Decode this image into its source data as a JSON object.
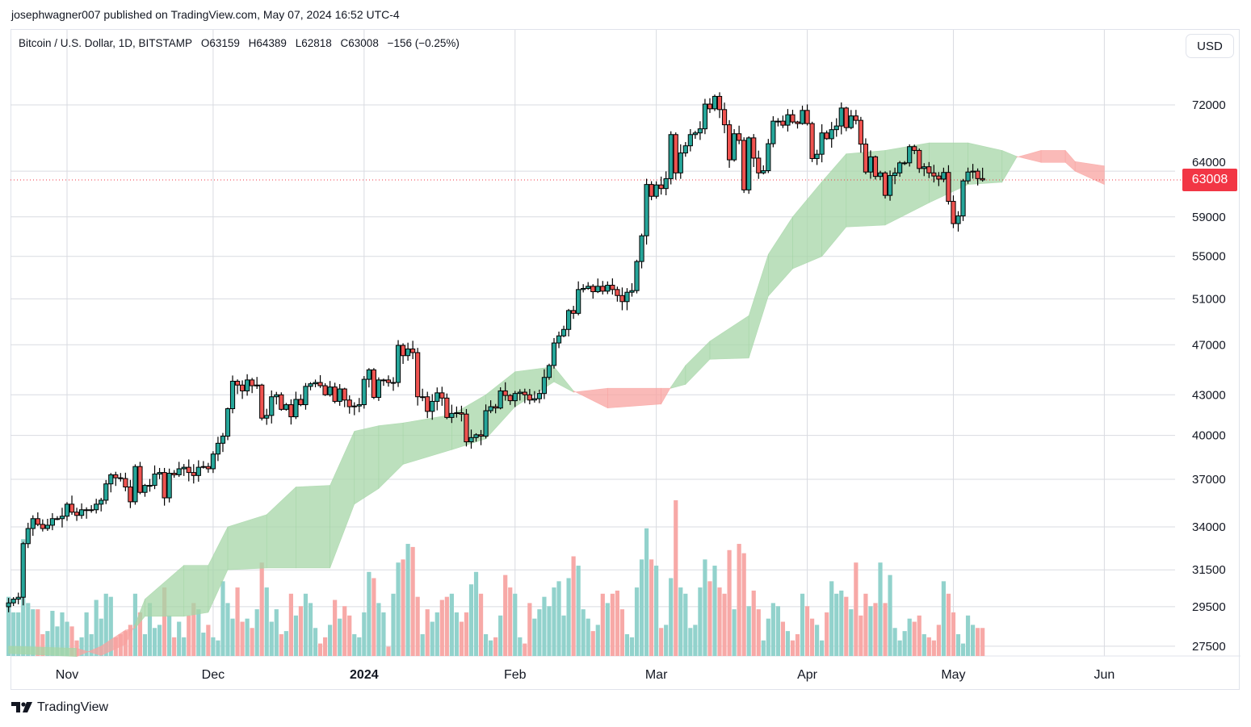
{
  "publisher": "josephwagner007 published on TradingView.com, May 07, 2024 16:52 UTC-4",
  "legend": {
    "symbol": "Bitcoin / U.S. Dollar, 1D, BITSTAMP",
    "open": "O63159",
    "high": "H64389",
    "low": "L62818",
    "close": "C63008",
    "change": "−156 (−0.25%)"
  },
  "currency_button": "USD",
  "last_price_label": "63008",
  "footer_brand": "TradingView",
  "colors": {
    "up": "#26a69a",
    "down": "#ef5350",
    "cloud_bull": "#a5d6a7",
    "cloud_bear": "#f8a3a0",
    "last_price": "#f23645",
    "grid": "#d9dbe1"
  },
  "chart_data": {
    "type": "candlestick",
    "scale": "log",
    "grid": true,
    "indicators": [
      "volume",
      "ichimoku cloud"
    ],
    "y_ticks": [
      "72000",
      "64000",
      "59000",
      "55000",
      "51000",
      "47000",
      "43000",
      "40000",
      "37000",
      "34000",
      "31500",
      "29500",
      "27500"
    ],
    "x_ticks": [
      {
        "label": "Nov",
        "date": "2023-11-01",
        "bold": false
      },
      {
        "label": "Dec",
        "date": "2023-12-01",
        "bold": false
      },
      {
        "label": "2024",
        "date": "2024-01-01",
        "bold": true
      },
      {
        "label": "Feb",
        "date": "2024-02-01",
        "bold": false
      },
      {
        "label": "Mar",
        "date": "2024-03-01",
        "bold": false
      },
      {
        "label": "Apr",
        "date": "2024-04-01",
        "bold": false
      },
      {
        "label": "May",
        "date": "2024-05-01",
        "bold": false
      },
      {
        "label": "Jun",
        "date": "2024-06-01",
        "bold": false
      }
    ],
    "first_open": 29500,
    "closes_by_month": [
      {
        "month": "2023-10",
        "start_day": 20,
        "close": [
          29700,
          29900,
          30000,
          33000,
          33900,
          34500,
          34150,
          33900,
          34100,
          34500,
          34500,
          34650
        ]
      },
      {
        "month": "2023-11",
        "start_day": 1,
        "close": [
          35400,
          34900,
          34700,
          35050,
          35050,
          35050,
          35400,
          35650,
          36700,
          37300,
          37100,
          37050,
          36500,
          35550,
          37850,
          36150,
          36600,
          36600,
          37350,
          37450,
          35800,
          37400,
          37300,
          37700,
          37800,
          37450,
          37250,
          37800,
          37850,
          37700
        ]
      },
      {
        "month": "2023-12",
        "start_day": 1,
        "close": [
          38700,
          39450,
          39950,
          41950,
          44050,
          43750,
          43300,
          44150,
          43700,
          43750,
          41250,
          41450,
          42850,
          43000,
          41900,
          42250,
          41350,
          42650,
          42250,
          43650,
          43850,
          43950,
          43700,
          43000,
          43600,
          42500,
          43450,
          42600,
          42100,
          42150,
          42250
        ]
      },
      {
        "month": "2024-01",
        "start_day": 1,
        "close": [
          44200,
          44950,
          42800,
          44150,
          44150,
          43950,
          43950,
          46950,
          46100,
          46650,
          46350,
          42850,
          42850,
          41750,
          42500,
          43150,
          42750,
          41300,
          41600,
          41650,
          41550,
          39550,
          39850,
          40050,
          39950,
          41800,
          42100,
          42000,
          43300,
          42950,
          42550
        ]
      },
      {
        "month": "2024-02",
        "start_day": 1,
        "close": [
          43100,
          43200,
          43000,
          42600,
          42700,
          43100,
          44350,
          45300,
          47150,
          47750,
          48300,
          49950,
          49700,
          51850,
          51950,
          52150,
          51650,
          52150,
          51700,
          52250,
          51850,
          51300,
          50750,
          51600,
          51750,
          54500,
          57050,
          62500,
          61200
        ]
      },
      {
        "month": "2024-03",
        "start_day": 1,
        "close": [
          62450,
          62050,
          63150,
          68300,
          63800,
          66100,
          66950,
          68300,
          68500,
          69000,
          72100,
          71500,
          73100,
          71400,
          69500,
          65300,
          68400,
          67600,
          61900,
          67900,
          65500,
          63800,
          64050,
          67200,
          69950,
          69950,
          69450,
          70750,
          69850,
          69650,
          71300
        ]
      },
      {
        "month": "2024-04",
        "start_day": 1,
        "close": [
          69650,
          65450,
          65950,
          68500,
          67800,
          68900,
          69350,
          71600,
          69150,
          70600,
          70050,
          67150,
          63900,
          65650,
          63400,
          63800,
          61300,
          63500,
          63800,
          64950,
          64950,
          66850,
          66400,
          64300,
          64500,
          63800,
          63450,
          63100,
          63850,
          60650
        ]
      },
      {
        "month": "2024-05",
        "start_day": 1,
        "close": [
          58300,
          59100,
          62900,
          63900,
          64000,
          63159,
          63008
        ]
      }
    ],
    "last_candle": {
      "open": 63159,
      "high": 64389,
      "low": 62818,
      "close": 63008
    },
    "last_price": 63008,
    "volume_relative": [
      38,
      28,
      28,
      75,
      34,
      30,
      30,
      14,
      16,
      29,
      19,
      28,
      22,
      19,
      10,
      12,
      28,
      14,
      36,
      24,
      40,
      38,
      12,
      14,
      16,
      20,
      40,
      28,
      14,
      34,
      18,
      20,
      44,
      26,
      12,
      22,
      12,
      26,
      34,
      30,
      15,
      20,
      12,
      10,
      48,
      34,
      24,
      44,
      22,
      24,
      18,
      30,
      60,
      44,
      22,
      30,
      14,
      16,
      40,
      26,
      32,
      40,
      34,
      18,
      8,
      12,
      20,
      36,
      24,
      32,
      26,
      14,
      12,
      28,
      54,
      50,
      34,
      28,
      6,
      40,
      60,
      62,
      72,
      70,
      38,
      14,
      30,
      22,
      28,
      36,
      38,
      40,
      28,
      22,
      28,
      46,
      54,
      40,
      14,
      10,
      12,
      26,
      52,
      44,
      40,
      12,
      8,
      34,
      24,
      30,
      38,
      32,
      44,
      48,
      26,
      50,
      64,
      58,
      30,
      24,
      16,
      20,
      40,
      34,
      40,
      42,
      30,
      14,
      12,
      44,
      62,
      82,
      62,
      58,
      18,
      20,
      50,
      100,
      44,
      40,
      18,
      20,
      44,
      62,
      48,
      58,
      44,
      40,
      68,
      30,
      72,
      66,
      32,
      42,
      30,
      10,
      24,
      34,
      32,
      22,
      16,
      10,
      14,
      40,
      32,
      24,
      20,
      10,
      28,
      48,
      40,
      42,
      38,
      30,
      60,
      26,
      40,
      32,
      34,
      60,
      34,
      52,
      18,
      10,
      16,
      24,
      22,
      26,
      14,
      12,
      10,
      20,
      48,
      40,
      28,
      14,
      8,
      26,
      20,
      18,
      18
    ],
    "ichimoku_cloud": [
      {
        "date": "2023-10-20",
        "span_a": 27500,
        "span_b": 27150
      },
      {
        "date": "2023-11-03",
        "span_a": 27400,
        "span_b": 27000
      },
      {
        "date": "2023-11-08",
        "span_a": 27050,
        "span_b": 27500
      },
      {
        "date": "2023-11-13",
        "span_a": 27600,
        "span_b": 28300
      },
      {
        "date": "2023-11-15",
        "span_a": 28600,
        "span_b": 28400
      },
      {
        "date": "2023-11-17",
        "span_a": 29900,
        "span_b": 29000
      },
      {
        "date": "2023-11-25",
        "span_a": 31750,
        "span_b": 29000
      },
      {
        "date": "2023-11-30",
        "span_a": 31750,
        "span_b": 29200
      },
      {
        "date": "2023-12-04",
        "span_a": 34000,
        "span_b": 31500
      },
      {
        "date": "2023-12-12",
        "span_a": 34750,
        "span_b": 31600
      },
      {
        "date": "2023-12-18",
        "span_a": 36500,
        "span_b": 31600
      },
      {
        "date": "2023-12-25",
        "span_a": 36600,
        "span_b": 31600
      },
      {
        "date": "2023-12-30",
        "span_a": 40300,
        "span_b": 35400
      },
      {
        "date": "2024-01-04",
        "span_a": 40700,
        "span_b": 36400
      },
      {
        "date": "2024-01-09",
        "span_a": 40900,
        "span_b": 38000
      },
      {
        "date": "2024-01-19",
        "span_a": 41500,
        "span_b": 39000
      },
      {
        "date": "2024-01-26",
        "span_a": 43000,
        "span_b": 39760
      },
      {
        "date": "2024-02-01",
        "span_a": 44800,
        "span_b": 42100
      },
      {
        "date": "2024-02-09",
        "span_a": 45200,
        "span_b": 44000
      },
      {
        "date": "2024-02-13",
        "span_a": 43300,
        "span_b": 43200
      },
      {
        "date": "2024-02-20",
        "span_a": 42000,
        "span_b": 43500
      },
      {
        "date": "2024-03-02",
        "span_a": 42300,
        "span_b": 43500
      },
      {
        "date": "2024-03-04",
        "span_a": 43600,
        "span_b": 43500
      },
      {
        "date": "2024-03-07",
        "span_a": 45300,
        "span_b": 43800
      },
      {
        "date": "2024-03-12",
        "span_a": 47300,
        "span_b": 45800
      },
      {
        "date": "2024-03-20",
        "span_a": 49500,
        "span_b": 45900
      },
      {
        "date": "2024-03-24",
        "span_a": 55200,
        "span_b": 51250
      },
      {
        "date": "2024-03-29",
        "span_a": 59000,
        "span_b": 53800
      },
      {
        "date": "2024-04-04",
        "span_a": 62800,
        "span_b": 55000
      },
      {
        "date": "2024-04-09",
        "span_a": 66000,
        "span_b": 57950
      },
      {
        "date": "2024-04-17",
        "span_a": 66400,
        "span_b": 58150
      },
      {
        "date": "2024-04-26",
        "span_a": 67300,
        "span_b": 60500
      },
      {
        "date": "2024-05-04",
        "span_a": 67300,
        "span_b": 62500
      },
      {
        "date": "2024-05-11",
        "span_a": 66400,
        "span_b": 62750
      },
      {
        "date": "2024-05-14",
        "span_a": 65700,
        "span_b": 65600
      },
      {
        "date": "2024-05-19",
        "span_a": 65000,
        "span_b": 66400
      },
      {
        "date": "2024-05-24",
        "span_a": 65000,
        "span_b": 66400
      },
      {
        "date": "2024-05-26",
        "span_a": 64000,
        "span_b": 65100
      },
      {
        "date": "2024-06-01",
        "span_a": 62500,
        "span_b": 64600
      }
    ]
  }
}
